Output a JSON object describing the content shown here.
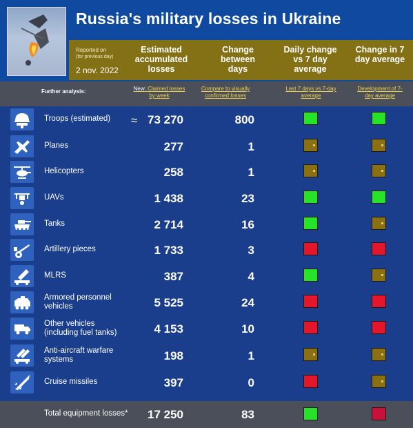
{
  "header": {
    "title": "Russia's military losses in Ukraine",
    "reported_on": "Reported on",
    "reported_sub": "(for previous day)",
    "date": "2 nov. 2022",
    "columns": [
      "Estimated accumulated losses",
      "Change between days",
      "Daily change vs 7 day average",
      "Change in 7 day average"
    ]
  },
  "analysis": {
    "label": "Further analysis:",
    "links": [
      {
        "prefix": "New: ",
        "text": "Claimed losses by week"
      },
      {
        "prefix": "",
        "text": "Compare to visually confirmed losses"
      },
      {
        "prefix": "",
        "text": "Last 7 days vs 7-day average"
      },
      {
        "prefix": "",
        "text": "Development of 7-day average"
      }
    ]
  },
  "rows": [
    {
      "icon": "helmet-icon",
      "label": "Troops (estimated)",
      "approx": "≈",
      "value": "73 270",
      "change": "800",
      "daily": "green",
      "weekly": "green"
    },
    {
      "icon": "jet-icon",
      "label": "Planes",
      "approx": "",
      "value": "277",
      "change": "1",
      "daily": "olive",
      "weekly": "olive"
    },
    {
      "icon": "helicopter-icon",
      "label": "Helicopters",
      "approx": "",
      "value": "258",
      "change": "1",
      "daily": "olive",
      "weekly": "olive"
    },
    {
      "icon": "drone-icon",
      "label": "UAVs",
      "approx": "",
      "value": "1 438",
      "change": "23",
      "daily": "green",
      "weekly": "green"
    },
    {
      "icon": "tank-icon",
      "label": "Tanks",
      "approx": "",
      "value": "2 714",
      "change": "16",
      "daily": "green",
      "weekly": "olive"
    },
    {
      "icon": "artillery-icon",
      "label": "Artillery pieces",
      "approx": "",
      "value": "1 733",
      "change": "3",
      "daily": "red",
      "weekly": "red"
    },
    {
      "icon": "mlrs-icon",
      "label": "MLRS",
      "approx": "",
      "value": "387",
      "change": "4",
      "daily": "green",
      "weekly": "olive"
    },
    {
      "icon": "apc-icon",
      "label": "Armored personnel vehicles",
      "approx": "",
      "value": "5 525",
      "change": "24",
      "daily": "red",
      "weekly": "red"
    },
    {
      "icon": "truck-icon",
      "label": "Other vehicles (including fuel tanks)",
      "approx": "",
      "value": "4 153",
      "change": "10",
      "daily": "red",
      "weekly": "red"
    },
    {
      "icon": "anti-aircraft-icon",
      "label": "Anti-aircraft warfare systems",
      "approx": "",
      "value": "198",
      "change": "1",
      "daily": "olive",
      "weekly": "olive"
    },
    {
      "icon": "missile-icon",
      "label": "Cruise missiles",
      "approx": "",
      "value": "397",
      "change": "0",
      "daily": "red",
      "weekly": "olive"
    }
  ],
  "footer": {
    "label": "Total equipment losses*",
    "value": "17 250",
    "change": "83",
    "daily": "green",
    "weekly": "crimson"
  },
  "colors": {
    "background": "#1a3e8c",
    "gold": "#857115",
    "green": "#27e327",
    "red": "#e3162c",
    "olive": "#8a7012"
  }
}
